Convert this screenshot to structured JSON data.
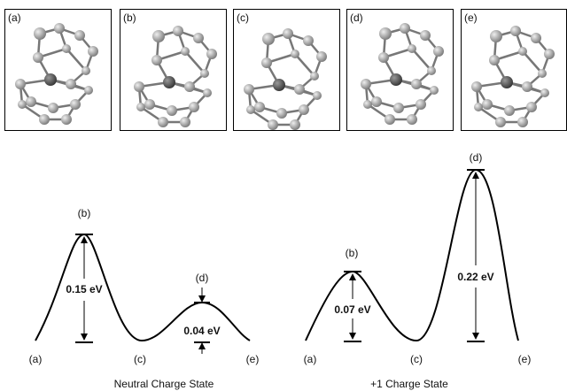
{
  "panels": [
    {
      "label": "(a)"
    },
    {
      "label": "(b)"
    },
    {
      "label": "(c)"
    },
    {
      "label": "(d)"
    },
    {
      "label": "(e)"
    }
  ],
  "diagrams": [
    {
      "points": [
        "(a)",
        "(b)",
        "(c)",
        "(d)",
        "(e)"
      ],
      "barriers": [
        "0.15 eV",
        "0.04 eV"
      ],
      "caption": "Neutral Charge State"
    },
    {
      "points": [
        "(a)",
        "(b)",
        "(c)",
        "(d)",
        "(e)"
      ],
      "barriers": [
        "0.07 eV",
        "0.22 eV"
      ],
      "caption": "+1 Charge State"
    }
  ]
}
